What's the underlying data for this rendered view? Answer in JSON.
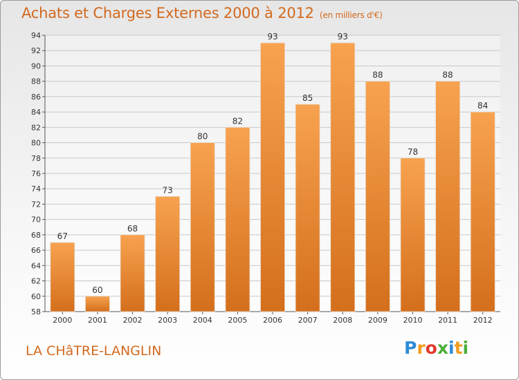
{
  "header": {
    "title": "Achats et Charges Externes 2000 à 2012",
    "subtitle": "(en milliers d'€)"
  },
  "footer": {
    "commune": "LA CHâTRE-LANGLIN",
    "logo": {
      "letters": [
        "P",
        "r",
        "o",
        "x",
        "i",
        "t",
        "i"
      ],
      "colors": [
        "#2e8bd8",
        "#f39c1f",
        "#e23b2e",
        "#4cae3a",
        "#2e8bd8",
        "#f39c1f",
        "#4cae3a"
      ]
    }
  },
  "colors": {
    "accent": "#d2691e",
    "bar_top": "#f7a24f",
    "bar_bottom": "#d46f1c"
  },
  "chart_data": {
    "type": "bar",
    "title": "Achats et Charges Externes 2000 à 2012",
    "subtitle": "(en milliers d'€)",
    "categories": [
      "2000",
      "2001",
      "2002",
      "2003",
      "2004",
      "2005",
      "2006",
      "2007",
      "2008",
      "2009",
      "2010",
      "2011",
      "2012"
    ],
    "values": [
      67,
      60,
      68,
      73,
      80,
      82,
      93,
      85,
      93,
      88,
      78,
      88,
      84
    ],
    "ylim": [
      58,
      94
    ],
    "yticks": [
      58,
      60,
      62,
      64,
      66,
      68,
      70,
      72,
      74,
      76,
      78,
      80,
      82,
      84,
      86,
      88,
      90,
      92,
      94
    ],
    "grid": true,
    "data_labels": true
  }
}
